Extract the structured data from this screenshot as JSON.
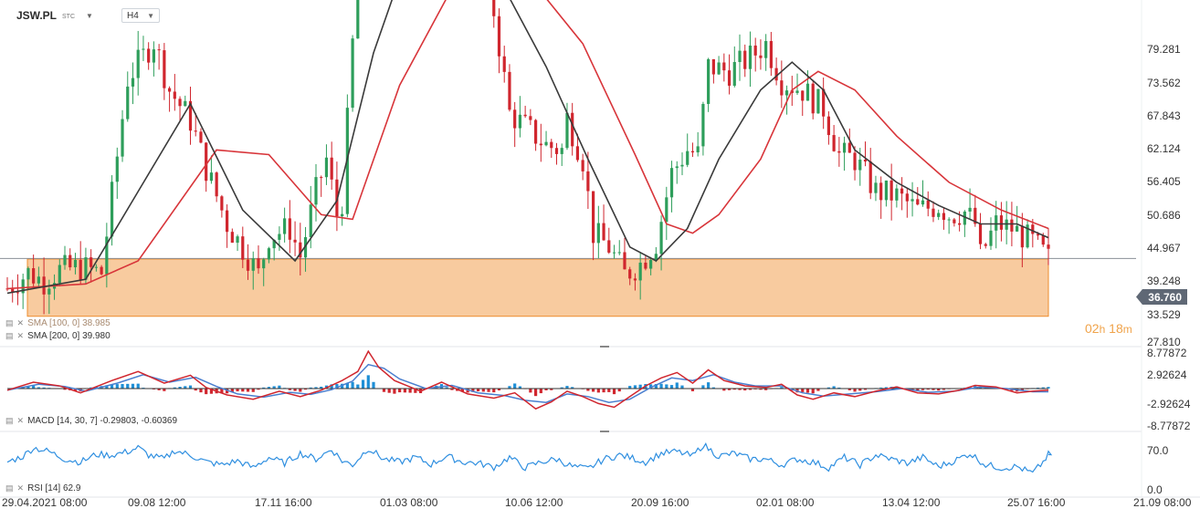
{
  "header": {
    "symbol": "JSW.PL",
    "exchange": "STC",
    "timeframe": "H4"
  },
  "current_price": "36.760",
  "countdown": {
    "hours": "02",
    "h_unit": "h",
    "minutes": "18",
    "m_unit": "m"
  },
  "indicators": {
    "sma100": "SMA [100, 0] 38.985",
    "sma200": "SMA [200, 0] 39.980",
    "macd": "MACD [14, 30, 7] -0.29803, -0.60369",
    "rsi": "RSI [14] 62.9"
  },
  "colors": {
    "up": "#2e9e5b",
    "down": "#d0262e",
    "sma100": "#3a3a3a",
    "sma200": "#d8353a",
    "zone_fill": "#f7c28e",
    "zone_border": "#ee8d2c",
    "macd_line": "#d0262e",
    "signal_line": "#4a7fcf",
    "hist_pos": "#1e8fd6",
    "hist_neg": "#d0262e",
    "rsi_line": "#2f8fe0",
    "price_tag": "#5f6875",
    "countdown": "#f0a34a"
  },
  "icons": [
    "caret-down-icon",
    "indicator-settings-icon",
    "indicator-close-icon"
  ],
  "chart_data": [
    {
      "type": "candlestick",
      "name": "JSW.PL H4",
      "y_ticks": [
        "79.281",
        "73.562",
        "67.843",
        "62.124",
        "56.405",
        "50.686",
        "44.967",
        "39.248",
        "33.529",
        "27.810"
      ],
      "ylim": [
        27.81,
        82.0
      ],
      "x_ticks": [
        "29.04.2021 08:00",
        "09.08 12:00",
        "17.11 16:00",
        "01.03 08:00",
        "10.06 12:00",
        "20.09 16:00",
        "02.01 08:00",
        "13.04 12:00",
        "25.07 16:00",
        "21.09 08:00"
      ],
      "price_path": [
        [
          0,
          33.5
        ],
        [
          4,
          35.2
        ],
        [
          7,
          34.3
        ],
        [
          10,
          35.5
        ],
        [
          14,
          35.8
        ],
        [
          18,
          35.2
        ],
        [
          23,
          56.2
        ],
        [
          28,
          60.3
        ],
        [
          31,
          55.0
        ],
        [
          35,
          51.7
        ],
        [
          38,
          46.5
        ],
        [
          42,
          40.5
        ],
        [
          46,
          37.0
        ],
        [
          48,
          35.0
        ],
        [
          50,
          39.2
        ],
        [
          54,
          40.0
        ],
        [
          56,
          37.0
        ],
        [
          59,
          44.0
        ],
        [
          61,
          47.5
        ],
        [
          63,
          41.5
        ],
        [
          64,
          43.0
        ],
        [
          66,
          60.0
        ],
        [
          68,
          71.0
        ],
        [
          70,
          76.0
        ],
        [
          72,
          78.5
        ],
        [
          74,
          73.5
        ],
        [
          77,
          70.0
        ],
        [
          80,
          72.0
        ],
        [
          83,
          70.5
        ],
        [
          87,
          69.0
        ],
        [
          90,
          68.0
        ],
        [
          93,
          63.5
        ],
        [
          96,
          52.5
        ],
        [
          99,
          51.0
        ],
        [
          103,
          49.0
        ],
        [
          106,
          48.5
        ],
        [
          107,
          52.0
        ],
        [
          110,
          47.5
        ],
        [
          112,
          39.5
        ],
        [
          115,
          38.0
        ],
        [
          118,
          35.0
        ],
        [
          121,
          36.2
        ],
        [
          124,
          38.5
        ],
        [
          127,
          46.0
        ],
        [
          130,
          48.5
        ],
        [
          132,
          48.0
        ],
        [
          134,
          57.5
        ],
        [
          138,
          57.0
        ],
        [
          142,
          58.5
        ],
        [
          145,
          60.0
        ],
        [
          148,
          56.0
        ],
        [
          152,
          55.0
        ],
        [
          156,
          53.0
        ],
        [
          159,
          48.0
        ],
        [
          162,
          47.5
        ],
        [
          166,
          44.0
        ],
        [
          170,
          43.5
        ],
        [
          174,
          42.0
        ],
        [
          178,
          42.5
        ],
        [
          180,
          41.5
        ],
        [
          183,
          41.8
        ],
        [
          185,
          40.5
        ],
        [
          186,
          37.0
        ],
        [
          189,
          40.5
        ],
        [
          192,
          40.0
        ],
        [
          196,
          38.5
        ],
        [
          199,
          36.7
        ]
      ],
      "series": [
        {
          "name": "SMA [100, 0]",
          "values": [
            [
              0,
              33.0
            ],
            [
              15,
              34.5
            ],
            [
              25,
              44.0
            ],
            [
              35,
              53.5
            ],
            [
              45,
              42.0
            ],
            [
              55,
              36.5
            ],
            [
              63,
              43.0
            ],
            [
              70,
              59.0
            ],
            [
              78,
              72.0
            ],
            [
              88,
              67.0
            ],
            [
              95,
              66.0
            ],
            [
              103,
              57.5
            ],
            [
              111,
              47.5
            ],
            [
              119,
              38.0
            ],
            [
              124,
              36.5
            ],
            [
              130,
              40.0
            ],
            [
              136,
              47.5
            ],
            [
              144,
              55.0
            ],
            [
              150,
              58.0
            ],
            [
              156,
              55.0
            ],
            [
              162,
              48.5
            ],
            [
              170,
              45.0
            ],
            [
              178,
              42.5
            ],
            [
              186,
              40.5
            ],
            [
              193,
              40.5
            ],
            [
              199,
              39.0
            ]
          ]
        },
        {
          "name": "SMA [200, 0]",
          "values": [
            [
              0,
              33.5
            ],
            [
              15,
              34.0
            ],
            [
              25,
              36.5
            ],
            [
              40,
              48.5
            ],
            [
              50,
              48.0
            ],
            [
              60,
              41.5
            ],
            [
              66,
              41.0
            ],
            [
              75,
              55.5
            ],
            [
              85,
              66.0
            ],
            [
              92,
              70.0
            ],
            [
              100,
              67.0
            ],
            [
              110,
              60.0
            ],
            [
              120,
              48.0
            ],
            [
              126,
              40.5
            ],
            [
              131,
              39.5
            ],
            [
              136,
              41.5
            ],
            [
              144,
              47.5
            ],
            [
              150,
              55.0
            ],
            [
              155,
              57.0
            ],
            [
              162,
              55.0
            ],
            [
              170,
              50.0
            ],
            [
              180,
              45.0
            ],
            [
              190,
              42.0
            ],
            [
              199,
              40.0
            ]
          ]
        }
      ],
      "zone": {
        "from": 30.5,
        "to": 36.7
      }
    },
    {
      "type": "macd",
      "y_ticks": [
        "8.77872",
        "2.92624",
        "-2.92624",
        "-8.77872"
      ],
      "ylim": [
        -8.77872,
        8.77872
      ],
      "series": [
        {
          "name": "MACD",
          "values": [
            [
              0,
              -0.3
            ],
            [
              5,
              1.2
            ],
            [
              10,
              0.5
            ],
            [
              14,
              -0.8
            ],
            [
              20,
              1.5
            ],
            [
              25,
              3.2
            ],
            [
              30,
              1.0
            ],
            [
              35,
              2.5
            ],
            [
              38,
              0.2
            ],
            [
              42,
              -1.2
            ],
            [
              47,
              -2.0
            ],
            [
              52,
              -0.5
            ],
            [
              56,
              -1.5
            ],
            [
              60,
              -0.3
            ],
            [
              64,
              1.5
            ],
            [
              67,
              3.2
            ],
            [
              69,
              7.0
            ],
            [
              71,
              4.0
            ],
            [
              74,
              1.5
            ],
            [
              79,
              -0.5
            ],
            [
              83,
              1.2
            ],
            [
              88,
              -1.0
            ],
            [
              93,
              -1.8
            ],
            [
              97,
              -0.8
            ],
            [
              101,
              -3.8
            ],
            [
              104,
              -2.5
            ],
            [
              107,
              -0.5
            ],
            [
              110,
              -1.5
            ],
            [
              113,
              -2.8
            ],
            [
              116,
              -3.5
            ],
            [
              119,
              -1.5
            ],
            [
              122,
              0.5
            ],
            [
              125,
              2.0
            ],
            [
              128,
              3.0
            ],
            [
              131,
              1.0
            ],
            [
              134,
              3.5
            ],
            [
              137,
              1.5
            ],
            [
              141,
              0.5
            ],
            [
              145,
              0.2
            ],
            [
              148,
              0.8
            ],
            [
              151,
              -1.2
            ],
            [
              154,
              -2.0
            ],
            [
              158,
              -0.8
            ],
            [
              162,
              -1.5
            ],
            [
              166,
              -0.5
            ],
            [
              170,
              0.3
            ],
            [
              174,
              -0.8
            ],
            [
              178,
              -1.0
            ],
            [
              182,
              -0.3
            ],
            [
              185,
              0.6
            ],
            [
              189,
              0.3
            ],
            [
              193,
              -0.8
            ],
            [
              196,
              -0.5
            ],
            [
              199,
              -0.3
            ]
          ]
        },
        {
          "name": "Signal",
          "values": [
            [
              0,
              -0.3
            ],
            [
              6,
              0.8
            ],
            [
              11,
              0.4
            ],
            [
              15,
              -0.5
            ],
            [
              21,
              1.0
            ],
            [
              26,
              2.6
            ],
            [
              31,
              1.2
            ],
            [
              36,
              2.1
            ],
            [
              40,
              0.4
            ],
            [
              44,
              -1.0
            ],
            [
              49,
              -1.6
            ],
            [
              54,
              -0.7
            ],
            [
              58,
              -1.1
            ],
            [
              62,
              -0.2
            ],
            [
              66,
              1.4
            ],
            [
              69,
              4.5
            ],
            [
              72,
              3.8
            ],
            [
              75,
              1.8
            ],
            [
              80,
              0.0
            ],
            [
              85,
              0.6
            ],
            [
              90,
              -0.8
            ],
            [
              95,
              -1.3
            ],
            [
              99,
              -2.2
            ],
            [
              103,
              -2.6
            ],
            [
              107,
              -1.0
            ],
            [
              111,
              -1.5
            ],
            [
              115,
              -2.6
            ],
            [
              119,
              -2.0
            ],
            [
              123,
              0.2
            ],
            [
              127,
              2.0
            ],
            [
              131,
              1.5
            ],
            [
              135,
              2.6
            ],
            [
              139,
              1.2
            ],
            [
              143,
              0.5
            ],
            [
              148,
              0.5
            ],
            [
              152,
              -0.8
            ],
            [
              156,
              -1.4
            ],
            [
              161,
              -1.0
            ],
            [
              166,
              -0.6
            ],
            [
              171,
              0.0
            ],
            [
              176,
              -0.7
            ],
            [
              181,
              -0.5
            ],
            [
              186,
              0.3
            ],
            [
              191,
              0.0
            ],
            [
              196,
              -0.6
            ],
            [
              199,
              -0.6
            ]
          ]
        }
      ]
    },
    {
      "type": "line",
      "name": "RSI",
      "y_ticks": [
        "70.0",
        "0.0"
      ],
      "ylim": [
        0,
        100
      ],
      "values": [
        [
          0,
          50
        ],
        [
          3,
          60
        ],
        [
          5,
          75
        ],
        [
          8,
          68
        ],
        [
          11,
          55
        ],
        [
          14,
          50
        ],
        [
          17,
          63
        ],
        [
          20,
          62
        ],
        [
          23,
          68
        ],
        [
          25,
          75
        ],
        [
          27,
          62
        ],
        [
          30,
          55
        ],
        [
          32,
          70
        ],
        [
          35,
          62
        ],
        [
          38,
          50
        ],
        [
          41,
          45
        ],
        [
          44,
          52
        ],
        [
          47,
          40
        ],
        [
          50,
          58
        ],
        [
          53,
          48
        ],
        [
          56,
          65
        ],
        [
          59,
          55
        ],
        [
          62,
          72
        ],
        [
          64,
          52
        ],
        [
          66,
          45
        ],
        [
          69,
          74
        ],
        [
          72,
          55
        ],
        [
          75,
          50
        ],
        [
          78,
          58
        ],
        [
          81,
          46
        ],
        [
          84,
          60
        ],
        [
          87,
          50
        ],
        [
          90,
          48
        ],
        [
          93,
          41
        ],
        [
          96,
          58
        ],
        [
          99,
          40
        ],
        [
          102,
          50
        ],
        [
          105,
          55
        ],
        [
          108,
          42
        ],
        [
          111,
          38
        ],
        [
          114,
          55
        ],
        [
          117,
          62
        ],
        [
          119,
          58
        ],
        [
          122,
          50
        ],
        [
          125,
          65
        ],
        [
          128,
          68
        ],
        [
          131,
          60
        ],
        [
          133,
          80
        ],
        [
          136,
          60
        ],
        [
          139,
          65
        ],
        [
          142,
          55
        ],
        [
          145,
          55
        ],
        [
          148,
          45
        ],
        [
          151,
          55
        ],
        [
          154,
          50
        ],
        [
          157,
          40
        ],
        [
          160,
          58
        ],
        [
          163,
          45
        ],
        [
          166,
          62
        ],
        [
          169,
          55
        ],
        [
          172,
          48
        ],
        [
          175,
          58
        ],
        [
          178,
          42
        ],
        [
          181,
          52
        ],
        [
          184,
          65
        ],
        [
          187,
          45
        ],
        [
          190,
          40
        ],
        [
          193,
          42
        ],
        [
          196,
          30
        ],
        [
          198,
          50
        ],
        [
          199,
          62.9
        ]
      ]
    }
  ]
}
